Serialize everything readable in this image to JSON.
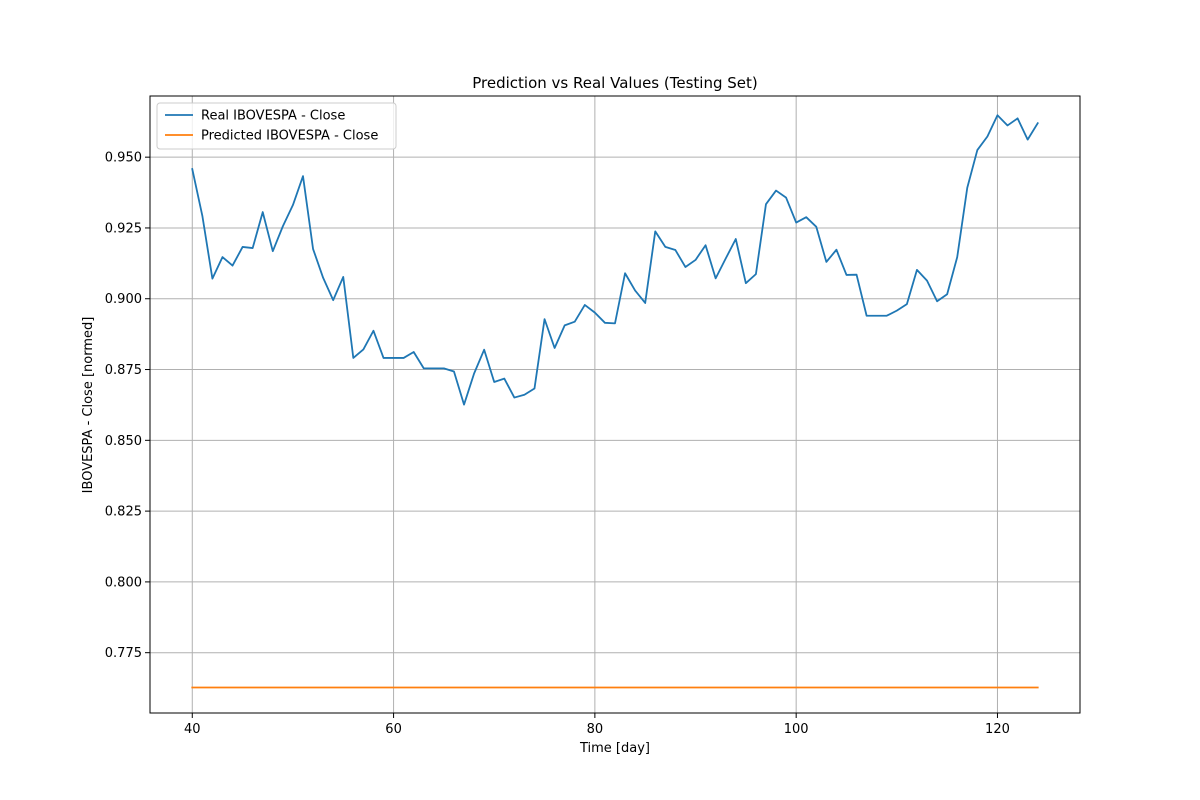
{
  "chart_data": {
    "type": "line",
    "title": "Prediction vs Real Values (Testing Set)",
    "xlabel": "Time [day]",
    "ylabel": "IBOVESPA - Close [normed]",
    "xlim": [
      35.8,
      128.2
    ],
    "ylim": [
      0.7537,
      0.9716
    ],
    "xticks": [
      40,
      60,
      80,
      100,
      120
    ],
    "xtick_labels": [
      "40",
      "60",
      "80",
      "100",
      "120"
    ],
    "yticks": [
      0.775,
      0.8,
      0.825,
      0.85,
      0.875,
      0.9,
      0.925,
      0.95
    ],
    "ytick_labels": [
      "0.775",
      "0.800",
      "0.825",
      "0.850",
      "0.875",
      "0.900",
      "0.925",
      "0.950"
    ],
    "grid": true,
    "legend_position": "top-left",
    "series": [
      {
        "name": "Real IBOVESPA - Close",
        "color": "#1f77b4",
        "x": [
          40,
          41,
          42,
          43,
          44,
          45,
          46,
          47,
          48,
          49,
          50,
          51,
          52,
          53,
          54,
          55,
          56,
          57,
          58,
          59,
          60,
          61,
          62,
          63,
          64,
          65,
          66,
          67,
          68,
          69,
          70,
          71,
          72,
          73,
          74,
          75,
          76,
          77,
          78,
          79,
          80,
          81,
          82,
          83,
          84,
          85,
          86,
          87,
          88,
          89,
          90,
          91,
          92,
          93,
          94,
          95,
          96,
          97,
          98,
          99,
          100,
          101,
          102,
          103,
          104,
          105,
          106,
          107,
          108,
          109,
          110,
          111,
          112,
          113,
          114,
          115,
          116,
          117,
          118,
          119,
          120,
          121,
          122,
          123,
          124
        ],
        "y": [
          0.9458,
          0.9293,
          0.9071,
          0.9147,
          0.9117,
          0.9183,
          0.9179,
          0.9306,
          0.9168,
          0.9256,
          0.9331,
          0.9433,
          0.9176,
          0.9074,
          0.8995,
          0.9077,
          0.8791,
          0.8821,
          0.8887,
          0.8791,
          0.8791,
          0.8791,
          0.8812,
          0.8754,
          0.8754,
          0.8754,
          0.8743,
          0.8626,
          0.8736,
          0.882,
          0.8706,
          0.8718,
          0.8651,
          0.8661,
          0.8683,
          0.8928,
          0.8826,
          0.8906,
          0.8919,
          0.8978,
          0.8951,
          0.8915,
          0.8913,
          0.909,
          0.9029,
          0.8985,
          0.9238,
          0.9183,
          0.9172,
          0.9112,
          0.9137,
          0.9189,
          0.9072,
          0.9142,
          0.9211,
          0.9055,
          0.9087,
          0.9334,
          0.9382,
          0.9357,
          0.9269,
          0.9288,
          0.9254,
          0.913,
          0.9173,
          0.9084,
          0.9085,
          0.894,
          0.894,
          0.894,
          0.8958,
          0.8981,
          0.9102,
          0.9064,
          0.8991,
          0.9016,
          0.9147,
          0.9392,
          0.9525,
          0.9573,
          0.9648,
          0.9612,
          0.9637,
          0.9562,
          0.962
        ]
      },
      {
        "name": "Predicted IBOVESPA - Close",
        "color": "#ff7f0e",
        "x": [
          40,
          124
        ],
        "y": [
          0.7627,
          0.7627
        ]
      }
    ]
  }
}
